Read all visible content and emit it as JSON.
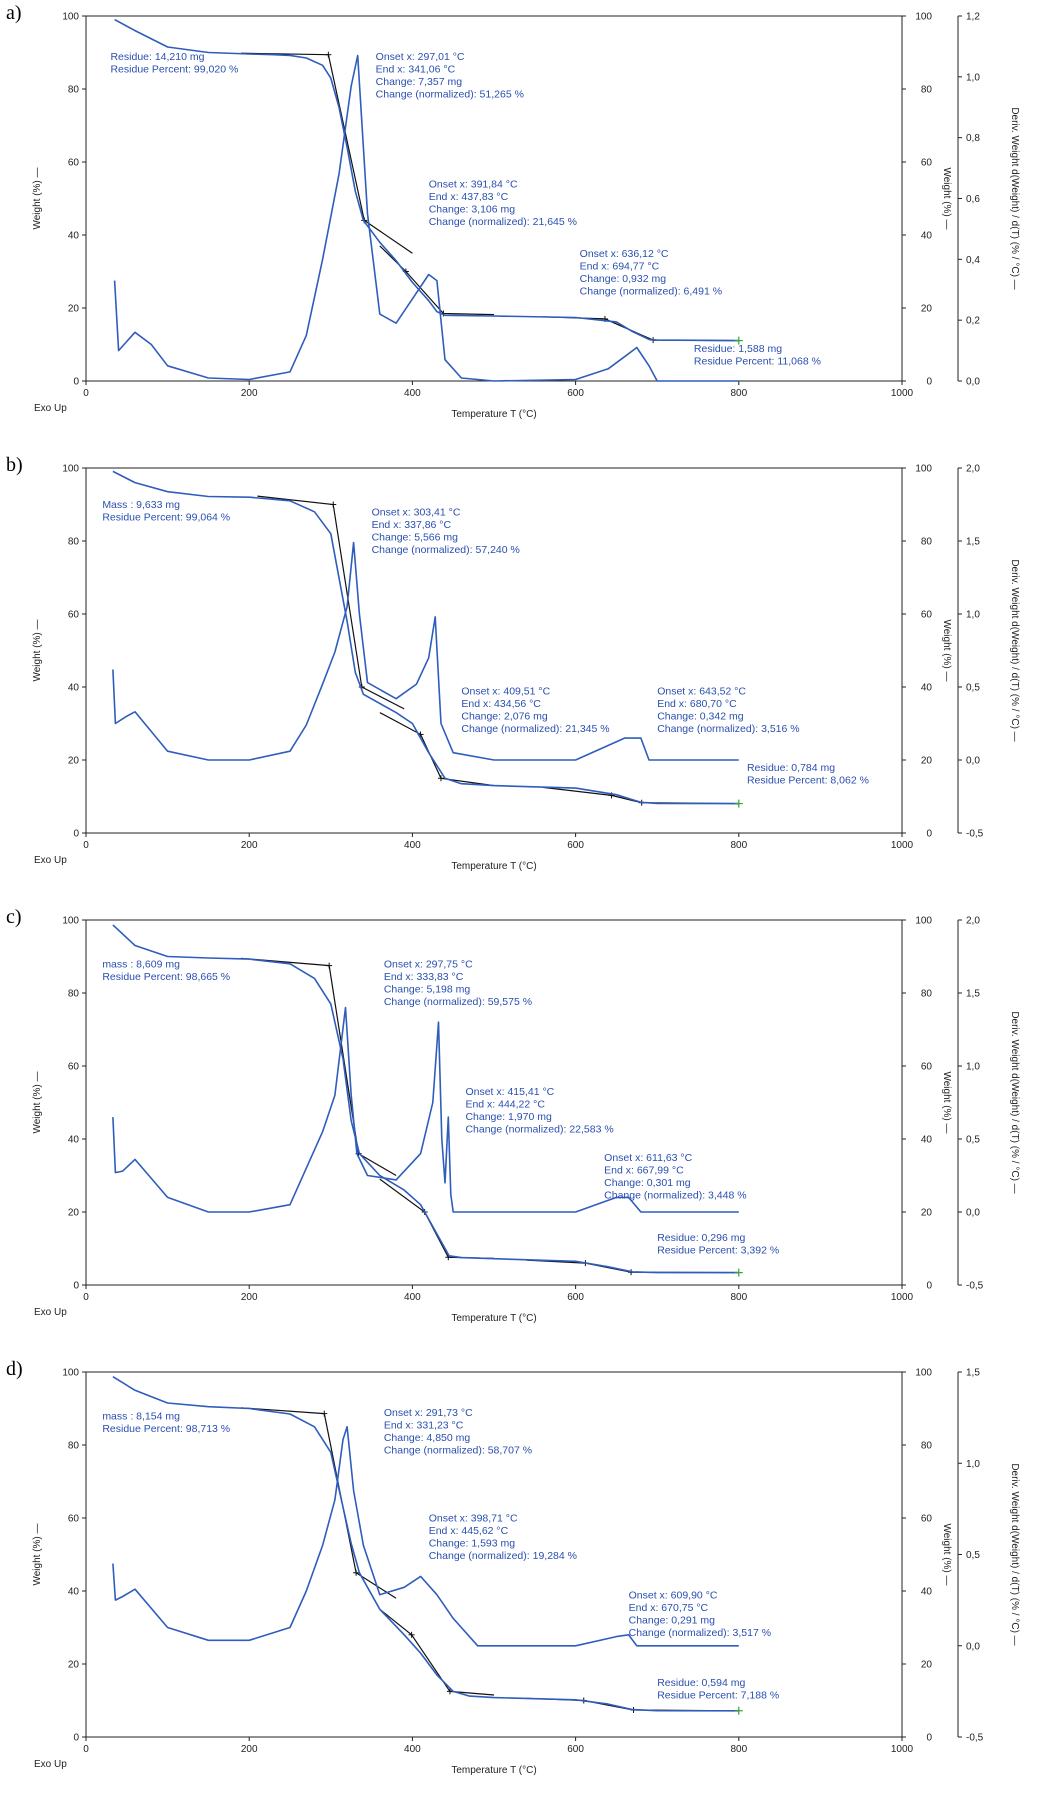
{
  "chart_data": [
    {
      "type": "line",
      "panel": "a)",
      "xlabel": "Temperature T (°C)",
      "ylabel": "Weight (%) —",
      "y2label": "Weight (%) —",
      "y3label": "Deriv. Weight d(Weight) / d(T) (% / °C) —",
      "exo_label": "Exo Up",
      "xlim": [
        0,
        1000
      ],
      "ylim": [
        0,
        100
      ],
      "y3lim": [
        0,
        1.2
      ],
      "xticks": [
        "0",
        "200",
        "400",
        "600",
        "800",
        "1000"
      ],
      "yticks": [
        "0",
        "20",
        "40",
        "60",
        "80",
        "100"
      ],
      "y3ticks": [
        "0,0",
        "0,2",
        "0,4",
        "0,6",
        "0,8",
        "1,0",
        "1,2"
      ],
      "series": [
        {
          "role": "weight",
          "x": [
            35,
            60,
            100,
            150,
            200,
            230,
            250,
            270,
            290,
            300,
            310,
            320,
            330,
            340,
            360,
            380,
            400,
            420,
            430,
            440,
            500,
            600,
            650,
            670,
            690,
            700,
            800
          ],
          "y": [
            99.0,
            96,
            91.5,
            90,
            89.6,
            89.4,
            89.2,
            88.5,
            86.5,
            83,
            75,
            64,
            52,
            44,
            38,
            33,
            27,
            22,
            19,
            18,
            17.8,
            17.4,
            16.2,
            13.5,
            11.4,
            11.2,
            11.07
          ]
        },
        {
          "role": "deriv",
          "x": [
            35,
            40,
            60,
            80,
            100,
            150,
            200,
            250,
            270,
            290,
            310,
            325,
            333,
            345,
            360,
            380,
            400,
            420,
            430,
            440,
            460,
            500,
            600,
            640,
            660,
            675,
            690,
            700,
            800
          ],
          "y": [
            0.33,
            0.1,
            0.16,
            0.12,
            0.05,
            0.01,
            0.005,
            0.03,
            0.15,
            0.4,
            0.68,
            0.97,
            1.07,
            0.55,
            0.22,
            0.19,
            0.27,
            0.35,
            0.33,
            0.07,
            0.01,
            0.0,
            0.005,
            0.04,
            0.08,
            0.11,
            0.05,
            0.0,
            0.0
          ]
        }
      ],
      "tangents": [
        {
          "x": [
            190,
            297,
            341,
            400
          ],
          "y": [
            89.8,
            89.4,
            44,
            35
          ]
        },
        {
          "x": [
            360,
            392,
            438,
            500
          ],
          "y": [
            37,
            30,
            18.5,
            18.2
          ]
        },
        {
          "x": [
            560,
            636,
            695,
            800
          ],
          "y": [
            17.6,
            17.0,
            11.2,
            11.07
          ]
        }
      ],
      "annotations": [
        {
          "lines": [
            "Residue: 14,210 mg",
            "Residue Percent: 99,020 %"
          ],
          "at": [
            30,
            88
          ]
        },
        {
          "lines": [
            "Onset x: 297,01 °C",
            "End x: 341,06 °C",
            "Change: 7,357 mg",
            "Change (normalized): 51,265 %"
          ],
          "at": [
            355,
            88
          ]
        },
        {
          "lines": [
            "Onset x: 391,84 °C",
            "End x: 437,83 °C",
            "Change: 3,106 mg",
            "Change (normalized): 21,645 %"
          ],
          "at": [
            420,
            53
          ]
        },
        {
          "lines": [
            "Onset x: 636,12 °C",
            "End x: 694,77 °C",
            "Change: 0,932 mg",
            "Change (normalized): 6,491 %"
          ],
          "at": [
            605,
            34
          ]
        },
        {
          "lines": [
            "Residue: 1,588 mg",
            "Residue Percent: 11,068 %"
          ],
          "at": [
            745,
            8
          ]
        }
      ]
    },
    {
      "type": "line",
      "panel": "b)",
      "xlabel": "Temperature T (°C)",
      "ylabel": "Weight (%) —",
      "y2label": "Weight (%) —",
      "y3label": "Deriv. Weight d(Weight) / d(T) (% / °C) —",
      "exo_label": "Exo Up",
      "xlim": [
        0,
        1000
      ],
      "ylim": [
        0,
        100
      ],
      "y3lim": [
        -0.5,
        2.0
      ],
      "xticks": [
        "0",
        "200",
        "400",
        "600",
        "800",
        "1000"
      ],
      "yticks": [
        "0",
        "20",
        "40",
        "60",
        "80",
        "100"
      ],
      "y3ticks": [
        "-0,5",
        "0,0",
        "0,5",
        "1,0",
        "1,5",
        "2,0"
      ],
      "series": [
        {
          "role": "weight",
          "x": [
            33,
            60,
            100,
            150,
            200,
            250,
            280,
            300,
            320,
            330,
            340,
            380,
            400,
            420,
            440,
            460,
            500,
            600,
            650,
            680,
            700,
            800
          ],
          "y": [
            99.06,
            96,
            93.5,
            92.2,
            92,
            91,
            88,
            82,
            58,
            44,
            38,
            33,
            30,
            22,
            15,
            13.5,
            13,
            12.3,
            10.5,
            8.4,
            8.1,
            8.06
          ]
        },
        {
          "role": "deriv",
          "x": [
            33,
            36,
            50,
            60,
            100,
            150,
            200,
            250,
            270,
            290,
            305,
            320,
            328,
            335,
            345,
            380,
            405,
            420,
            428,
            435,
            450,
            500,
            600,
            660,
            680,
            690,
            800
          ],
          "y": [
            0.62,
            0.25,
            0.3,
            0.33,
            0.06,
            0.0,
            0.0,
            0.06,
            0.24,
            0.52,
            0.74,
            1.05,
            1.49,
            1.0,
            0.53,
            0.42,
            0.52,
            0.7,
            0.98,
            0.25,
            0.05,
            0.0,
            0.0,
            0.15,
            0.15,
            0.0,
            0.0
          ]
        }
      ],
      "tangents": [
        {
          "x": [
            210,
            303,
            338,
            390
          ],
          "y": [
            92.3,
            90,
            40,
            34
          ]
        },
        {
          "x": [
            360,
            410,
            435,
            500
          ],
          "y": [
            33,
            27,
            15,
            13
          ]
        },
        {
          "x": [
            560,
            644,
            681,
            800
          ],
          "y": [
            12.5,
            10.3,
            8.3,
            8.06
          ]
        }
      ],
      "annotations": [
        {
          "lines": [
            "Mass : 9,633 mg",
            "Residue Percent: 99,064 %"
          ],
          "at": [
            20,
            89
          ]
        },
        {
          "lines": [
            "Onset x: 303,41 °C",
            "End x: 337,86 °C",
            "Change: 5,566 mg",
            "Change (normalized): 57,240 %"
          ],
          "at": [
            350,
            87
          ]
        },
        {
          "lines": [
            "Onset x: 409,51 °C",
            "End x: 434,56 °C",
            "Change: 2,076 mg",
            "Change (normalized): 21,345 %"
          ],
          "at": [
            460,
            38
          ]
        },
        {
          "lines": [
            "Onset x: 643,52 °C",
            "End x: 680,70 °C",
            "Change: 0,342 mg",
            "Change (normalized): 3,516 %"
          ],
          "at": [
            700,
            38
          ]
        },
        {
          "lines": [
            "Residue: 0,784 mg",
            "Residue Percent: 8,062 %"
          ],
          "at": [
            810,
            17
          ]
        }
      ]
    },
    {
      "type": "line",
      "panel": "c)",
      "xlabel": "Temperature T (°C)",
      "ylabel": "Weight (%) —",
      "y2label": "Weight (%) —",
      "y3label": "Deriv. Weight d(Weight) / d(T) (% / °C) —",
      "exo_label": "Exo Up",
      "xlim": [
        0,
        1000
      ],
      "ylim": [
        0,
        100
      ],
      "y3lim": [
        -0.5,
        2.0
      ],
      "xticks": [
        "0",
        "200",
        "400",
        "600",
        "800",
        "1000"
      ],
      "yticks": [
        "0",
        "20",
        "40",
        "60",
        "80",
        "100"
      ],
      "y3ticks": [
        "-0,5",
        "0,0",
        "0,5",
        "1,0",
        "1,5",
        "2,0"
      ],
      "series": [
        {
          "role": "weight",
          "x": [
            33,
            60,
            100,
            150,
            200,
            250,
            280,
            300,
            315,
            325,
            335,
            360,
            390,
            410,
            430,
            445,
            460,
            500,
            600,
            640,
            670,
            700,
            800
          ],
          "y": [
            98.66,
            93,
            90,
            89.6,
            89.3,
            88,
            84,
            77,
            62,
            45,
            36,
            30,
            26,
            22,
            14,
            8,
            7.5,
            7.2,
            6.5,
            5,
            3.6,
            3.4,
            3.39
          ]
        },
        {
          "role": "deriv",
          "x": [
            33,
            36,
            45,
            60,
            100,
            150,
            200,
            250,
            270,
            290,
            305,
            318,
            325,
            332,
            345,
            380,
            410,
            425,
            432,
            436,
            440,
            444,
            447,
            450,
            470,
            500,
            600,
            650,
            665,
            680,
            800
          ],
          "y": [
            0.65,
            0.27,
            0.28,
            0.36,
            0.1,
            0.0,
            0.0,
            0.05,
            0.3,
            0.55,
            0.8,
            1.4,
            0.8,
            0.4,
            0.25,
            0.22,
            0.4,
            0.75,
            1.3,
            0.5,
            0.2,
            0.65,
            0.12,
            0.0,
            0.0,
            0.0,
            0.0,
            0.1,
            0.1,
            0.0,
            0.0
          ]
        }
      ],
      "tangents": [
        {
          "x": [
            190,
            298,
            334,
            380
          ],
          "y": [
            89.5,
            87.5,
            36,
            30
          ]
        },
        {
          "x": [
            360,
            415,
            444,
            500
          ],
          "y": [
            29,
            20,
            7.6,
            7.3
          ]
        },
        {
          "x": [
            540,
            612,
            668,
            800
          ],
          "y": [
            6.8,
            6,
            3.5,
            3.39
          ]
        }
      ],
      "annotations": [
        {
          "lines": [
            "mass : 8,609 mg",
            "Residue Percent: 98,665 %"
          ],
          "at": [
            20,
            87
          ]
        },
        {
          "lines": [
            "Onset x: 297,75 °C",
            "End x: 333,83 °C",
            "Change: 5,198 mg",
            "Change (normalized): 59,575 %"
          ],
          "at": [
            365,
            87
          ]
        },
        {
          "lines": [
            "Onset x: 415,41 °C",
            "End x: 444,22 °C",
            "Change: 1,970 mg",
            "Change (normalized): 22,583 %"
          ],
          "at": [
            465,
            52
          ]
        },
        {
          "lines": [
            "Onset x: 611,63 °C",
            "End x: 667,99 °C",
            "Change: 0,301 mg",
            "Change (normalized): 3,448 %"
          ],
          "at": [
            635,
            34
          ]
        },
        {
          "lines": [
            "Residue: 0,296 mg",
            "Residue Percent: 3,392 %"
          ],
          "at": [
            700,
            12
          ]
        }
      ]
    },
    {
      "type": "line",
      "panel": "d)",
      "xlabel": "Temperature T (°C)",
      "ylabel": "Weight (%) —",
      "y2label": "Weight (%) —",
      "y3label": "Deriv. Weight d(Weight) / d(T) (% / °C) —",
      "exo_label": "Exo Up",
      "xlim": [
        0,
        1000
      ],
      "ylim": [
        0,
        100
      ],
      "y3lim": [
        -0.5,
        1.5
      ],
      "xticks": [
        "0",
        "200",
        "400",
        "600",
        "800",
        "1000"
      ],
      "yticks": [
        "0",
        "20",
        "40",
        "60",
        "80",
        "100"
      ],
      "y3ticks": [
        "-0,5",
        "0,0",
        "0,5",
        "1,0",
        "1,5"
      ],
      "series": [
        {
          "role": "weight",
          "x": [
            33,
            60,
            100,
            150,
            200,
            250,
            280,
            300,
            315,
            325,
            335,
            360,
            390,
            410,
            430,
            450,
            470,
            500,
            600,
            640,
            670,
            700,
            800
          ],
          "y": [
            98.71,
            95,
            91.5,
            90.5,
            90,
            88.5,
            85,
            78,
            63,
            53,
            45,
            35,
            28,
            23,
            17,
            12.5,
            11.2,
            10.8,
            10.2,
            9.0,
            7.5,
            7.2,
            7.19
          ]
        },
        {
          "role": "deriv",
          "x": [
            33,
            36,
            45,
            60,
            100,
            150,
            200,
            250,
            270,
            290,
            305,
            315,
            320,
            328,
            340,
            360,
            390,
            410,
            430,
            450,
            480,
            500,
            600,
            650,
            665,
            675,
            800
          ],
          "y": [
            0.45,
            0.25,
            0.27,
            0.31,
            0.1,
            0.03,
            0.03,
            0.1,
            0.3,
            0.55,
            0.8,
            1.13,
            1.2,
            0.85,
            0.55,
            0.28,
            0.32,
            0.38,
            0.28,
            0.15,
            0.0,
            0.0,
            0.0,
            0.05,
            0.06,
            0.0,
            0.0
          ]
        }
      ],
      "tangents": [
        {
          "x": [
            190,
            292,
            331,
            380
          ],
          "y": [
            90.2,
            88.6,
            45,
            38
          ]
        },
        {
          "x": [
            360,
            399,
            446,
            500
          ],
          "y": [
            35,
            28,
            12.5,
            11.5
          ]
        },
        {
          "x": [
            540,
            610,
            671,
            800
          ],
          "y": [
            10.6,
            10,
            7.4,
            7.19
          ]
        }
      ],
      "annotations": [
        {
          "lines": [
            "mass : 8,154 mg",
            "Residue Percent: 98,713 %"
          ],
          "at": [
            20,
            87
          ]
        },
        {
          "lines": [
            "Onset x: 291,73 °C",
            "End x: 331,23 °C",
            "Change: 4,850 mg",
            "Change (normalized): 58,707 %"
          ],
          "at": [
            365,
            88
          ]
        },
        {
          "lines": [
            "Onset x: 398,71 °C",
            "End x: 445,62 °C",
            "Change: 1,593 mg",
            "Change (normalized): 19,284 %"
          ],
          "at": [
            420,
            59
          ]
        },
        {
          "lines": [
            "Onset x: 609,90 °C",
            "End x: 670,75 °C",
            "Change: 0,291 mg",
            "Change (normalized): 3,517 %"
          ],
          "at": [
            665,
            38
          ]
        },
        {
          "lines": [
            "Residue: 0,594 mg",
            "Residue Percent: 7,188 %"
          ],
          "at": [
            700,
            14
          ]
        }
      ]
    }
  ],
  "colors": {
    "curve": "#2f5dbd",
    "tangent": "#111111",
    "text": "#2a4fb0",
    "axis": "#222222"
  }
}
